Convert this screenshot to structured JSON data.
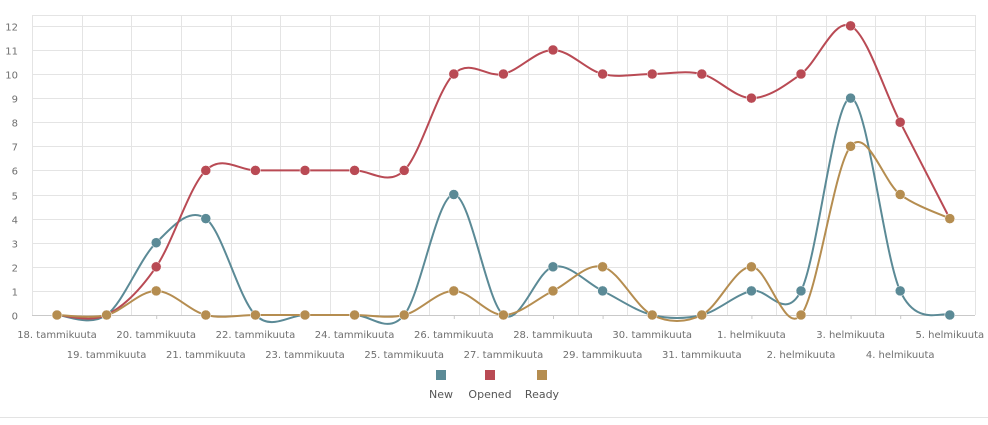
{
  "chart_data": {
    "type": "line",
    "categories": [
      "18. tammikuuta",
      "19. tammikuuta",
      "20. tammikuuta",
      "21. tammikuuta",
      "22. tammikuuta",
      "23. tammikuuta",
      "24. tammikuuta",
      "25. tammikuuta",
      "26. tammikuuta",
      "27. tammikuuta",
      "28. tammikuuta",
      "29. tammikuuta",
      "30. tammikuuta",
      "31. tammikuuta",
      "1. helmikuuta",
      "2. helmikuuta",
      "3. helmikuuta",
      "4. helmikuuta",
      "5. helmikuuta"
    ],
    "series": [
      {
        "name": "New",
        "color": "#5b8a96",
        "values": [
          0,
          0,
          3,
          4,
          0,
          0,
          0,
          0,
          5,
          0,
          2,
          1,
          0,
          0,
          1,
          1,
          9,
          1,
          0
        ]
      },
      {
        "name": "Opened",
        "color": "#b94a54",
        "values": [
          0,
          0,
          2,
          6,
          6,
          6,
          6,
          6,
          10,
          10,
          11,
          10,
          10,
          10,
          9,
          10,
          12,
          8,
          4
        ]
      },
      {
        "name": "Ready",
        "color": "#b58d50",
        "values": [
          0,
          0,
          1,
          0,
          0,
          0,
          0,
          0,
          1,
          0,
          1,
          2,
          0,
          0,
          2,
          0,
          7,
          5,
          4
        ]
      }
    ],
    "y_ticks": [
      0,
      1,
      2,
      3,
      4,
      5,
      6,
      7,
      8,
      9,
      10,
      11,
      12
    ],
    "ylim": [
      0,
      12.45
    ],
    "grid": true,
    "legend_position": "bottom-center",
    "title": "",
    "xlabel": "",
    "ylabel": ""
  }
}
